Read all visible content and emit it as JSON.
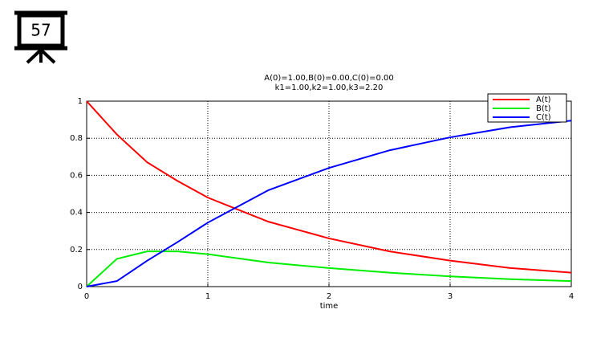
{
  "slide_number": "57",
  "chart_data": {
    "type": "line",
    "title": "A(0)=1.00,B(0)=0.00,C(0)=0.00",
    "subtitle": "k1=1.00,k2=1.00,k3=2.20",
    "x_label": "time",
    "x": [
      0,
      0.25,
      0.5,
      0.75,
      1,
      1.5,
      2,
      2.5,
      3,
      3.5,
      4
    ],
    "series": [
      {
        "name": "A(t)",
        "color": "#ff0000",
        "values": [
          1,
          0.82,
          0.67,
          0.57,
          0.48,
          0.35,
          0.26,
          0.19,
          0.14,
          0.1,
          0.075
        ]
      },
      {
        "name": "B(t)",
        "color": "#00ee00",
        "values": [
          0,
          0.15,
          0.19,
          0.19,
          0.175,
          0.13,
          0.1,
          0.075,
          0.055,
          0.04,
          0.03
        ]
      },
      {
        "name": "C(t)",
        "color": "#0000ff",
        "values": [
          0,
          0.03,
          0.14,
          0.24,
          0.345,
          0.52,
          0.64,
          0.735,
          0.805,
          0.86,
          0.895
        ]
      }
    ],
    "xlim": [
      0,
      4
    ],
    "xticks": [
      0,
      1,
      2,
      3,
      4
    ],
    "ylim": [
      0,
      1
    ],
    "yticks": [
      0,
      0.2,
      0.4,
      0.6,
      0.8,
      1
    ],
    "grid": true,
    "legend": "upper-right"
  }
}
